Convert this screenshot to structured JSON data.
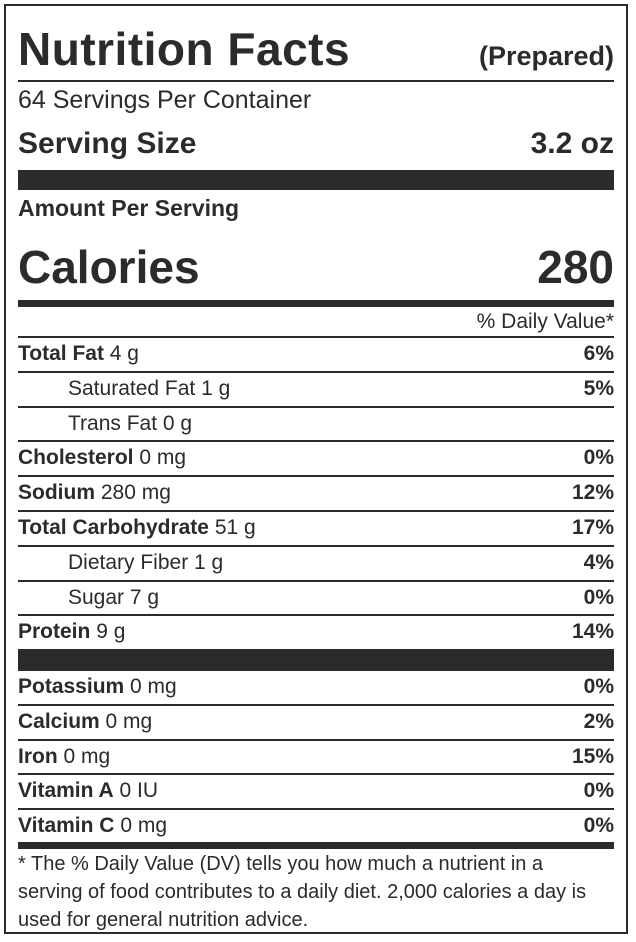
{
  "title": "Nutrition Facts",
  "subtitle": "(Prepared)",
  "servings_per_container": "64 Servings Per Container",
  "serving_size_label": "Serving Size",
  "serving_size_value": "3.2 oz",
  "amount_per_serving": "Amount Per Serving",
  "calories_label": "Calories",
  "calories_value": "280",
  "daily_value_header": "% Daily Value*",
  "nutrients": [
    {
      "name": "Total Fat",
      "amount": "4 g",
      "dv": "6%"
    },
    {
      "name": "Saturated Fat",
      "amount": "1 g",
      "dv": "5%"
    },
    {
      "name": "Trans Fat",
      "amount": "0 g",
      "dv": ""
    },
    {
      "name": "Cholesterol",
      "amount": "0 mg",
      "dv": "0%"
    },
    {
      "name": "Sodium",
      "amount": "280 mg",
      "dv": "12%"
    },
    {
      "name": "Total Carbohydrate",
      "amount": "51 g",
      "dv": "17%"
    },
    {
      "name": "Dietary Fiber",
      "amount": "1 g",
      "dv": "4%"
    },
    {
      "name": "Sugar",
      "amount": "7 g",
      "dv": "0%"
    },
    {
      "name": "Protein",
      "amount": "9 g",
      "dv": "14%"
    }
  ],
  "minerals": [
    {
      "name": "Potassium",
      "amount": "0 mg",
      "dv": "0%"
    },
    {
      "name": "Calcium",
      "amount": "0 mg",
      "dv": "2%"
    },
    {
      "name": "Iron",
      "amount": "0 mg",
      "dv": "15%"
    },
    {
      "name": "Vitamin A",
      "amount": "0 IU",
      "dv": "0%"
    },
    {
      "name": "Vitamin C",
      "amount": "0 mg",
      "dv": "0%"
    }
  ],
  "footnote": "* The % Daily Value (DV) tells you how much a nutrient in a serving of food contributes to a daily diet. 2,000 calories a day is used for general nutrition advice."
}
